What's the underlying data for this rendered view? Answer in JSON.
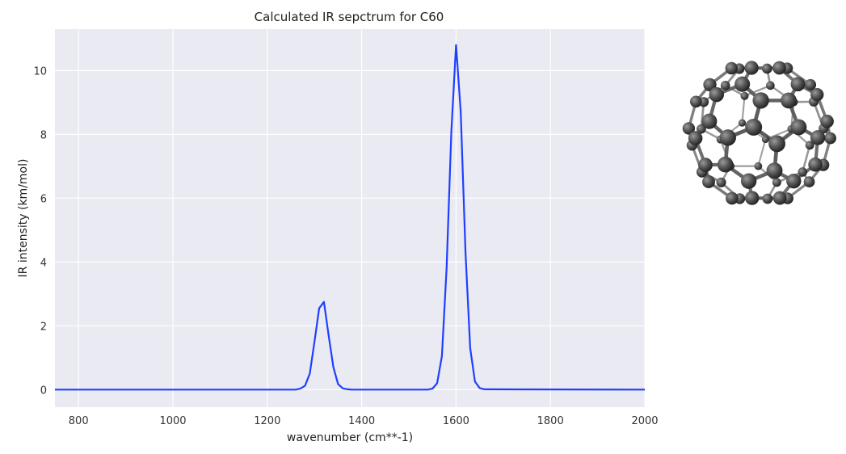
{
  "chart_data": {
    "type": "line",
    "title": "Calculated IR sepctrum for C60",
    "xlabel": "wavenumber (cm**-1)",
    "ylabel": "IR intensity (km/mol)",
    "xlim": [
      750,
      2000
    ],
    "ylim": [
      -0.55,
      11.3
    ],
    "xticks": [
      800,
      1000,
      1200,
      1400,
      1600,
      1800,
      2000
    ],
    "yticks": [
      0,
      2,
      4,
      6,
      8,
      10
    ],
    "grid": true,
    "background": "#eaeaf2",
    "series": [
      {
        "color": "#1f3fff",
        "x": [
          750,
          1260,
          1270,
          1280,
          1290,
          1300,
          1310,
          1320,
          1330,
          1340,
          1350,
          1360,
          1370,
          1380,
          1540,
          1550,
          1560,
          1570,
          1580,
          1590,
          1600,
          1610,
          1620,
          1630,
          1640,
          1650,
          1660,
          2000
        ],
        "y": [
          0,
          0,
          0.03,
          0.12,
          0.5,
          1.5,
          2.55,
          2.75,
          1.7,
          0.7,
          0.17,
          0.04,
          0.01,
          0,
          0,
          0.03,
          0.2,
          1.05,
          3.8,
          8.1,
          10.8,
          8.7,
          4.3,
          1.3,
          0.25,
          0.05,
          0.01,
          0
        ]
      }
    ]
  },
  "molecule_image": {
    "name": "C60 fullerene ball-and-stick model",
    "atom_color": "#555555",
    "bond_color": "#5a5a5a"
  }
}
